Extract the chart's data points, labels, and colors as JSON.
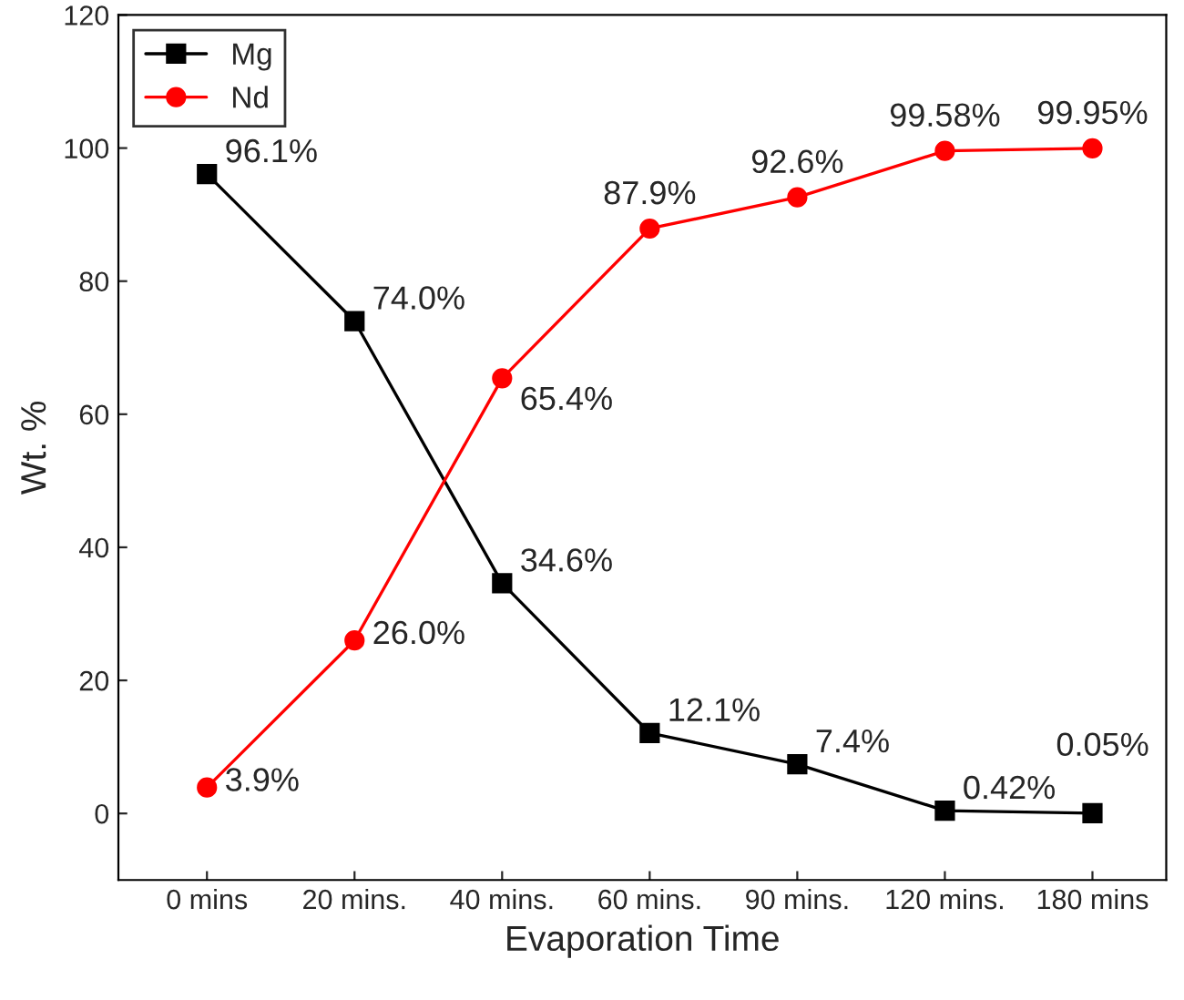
{
  "chart_data": {
    "type": "line",
    "xlabel": "Evaporation Time",
    "ylabel": "Wt. %",
    "categories": [
      "0 mins",
      "20 mins.",
      "40 mins.",
      "60 mins.",
      "90 mins.",
      "120 mins.",
      "180 mins"
    ],
    "series": [
      {
        "name": "Mg",
        "color": "#000000",
        "marker": "square",
        "values": [
          96.1,
          74.0,
          34.6,
          12.1,
          7.4,
          0.42,
          0.05
        ],
        "value_labels": [
          "96.1%",
          "74.0%",
          "34.6%",
          "12.1%",
          "7.4%",
          "0.42%",
          "0.05%"
        ]
      },
      {
        "name": "Nd",
        "color": "#ff0000",
        "marker": "circle",
        "values": [
          3.9,
          26.0,
          65.4,
          87.9,
          92.6,
          99.58,
          99.95
        ],
        "value_labels": [
          "3.9%",
          "26.0%",
          "65.4%",
          "87.9%",
          "92.6%",
          "99.58%",
          "99.95%"
        ]
      }
    ],
    "ylim": [
      -10,
      120
    ],
    "yticks": [
      0,
      20,
      40,
      60,
      80,
      100,
      120
    ],
    "grid": false,
    "legend": "top left",
    "line_style": "solid"
  }
}
